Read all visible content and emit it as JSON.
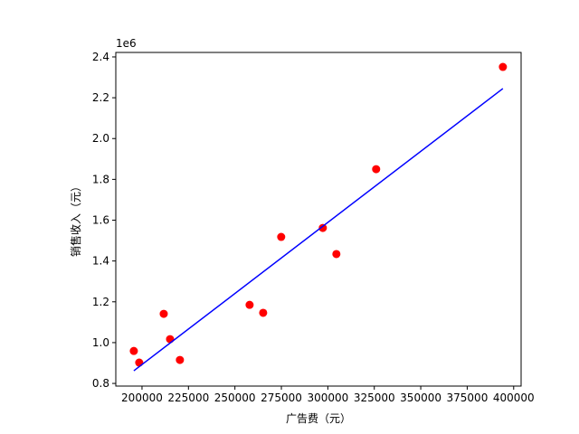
{
  "chart_data": {
    "type": "scatter",
    "xlabel": "广告费（元）",
    "ylabel": "销售收入（元）",
    "y_offset_text": "1e6",
    "xlim": [
      185900,
      404000
    ],
    "ylim": [
      0.787,
      2.422
    ],
    "xticks": [
      200000,
      225000,
      250000,
      275000,
      300000,
      325000,
      350000,
      375000,
      400000
    ],
    "yticks": [
      0.8,
      {
        "value": 1,
        "label": "1.0"
      },
      1.2,
      1.4,
      1.6,
      1.8,
      {
        "value": 2,
        "label": "2.0"
      },
      2.2,
      2.4
    ],
    "series": [
      {
        "type": "scatter",
        "color": "#ff0000",
        "x": [
          195600,
          198500,
          211700,
          215100,
          220400,
          257900,
          265200,
          274900,
          297300,
          304600,
          326000,
          394200
        ],
        "values": [
          0.959,
          0.902,
          1.141,
          1.017,
          0.915,
          1.185,
          1.146,
          1.518,
          1.562,
          1.434,
          1.85,
          2.351
        ]
      },
      {
        "type": "line",
        "color": "#0000ff",
        "x": [
          195600,
          394200
        ],
        "values": [
          0.862,
          2.245
        ]
      }
    ]
  }
}
